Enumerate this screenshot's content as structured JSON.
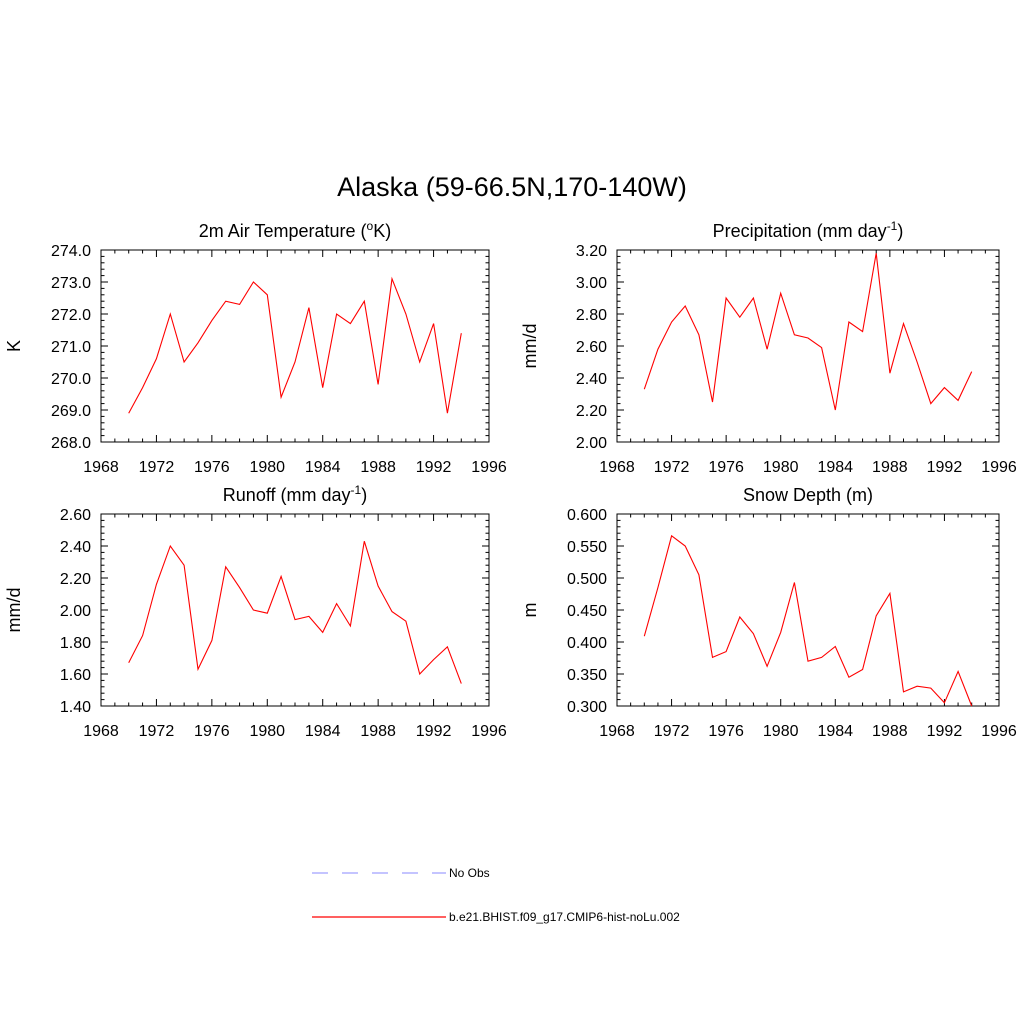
{
  "figure": {
    "title": "Alaska (59-66.5N,170-140W)"
  },
  "chart_data": [
    {
      "type": "line",
      "title": "2m Air Temperature (",
      "title_sup": "o",
      "title_end": "K)",
      "ylabel": "K",
      "xlim": [
        1968,
        1996
      ],
      "ylim": [
        268.0,
        274.0
      ],
      "xticks": [
        "1968",
        "1972",
        "1976",
        "1980",
        "1984",
        "1988",
        "1992",
        "1996"
      ],
      "yticks": [
        "268.0",
        "269.0",
        "270.0",
        "271.0",
        "272.0",
        "273.0",
        "274.0"
      ],
      "grid": false,
      "series": [
        {
          "name": "b.e21.BHIST.f09_g17.CMIP6-hist-noLu.002",
          "color": "#ff0000",
          "x": [
            1970,
            1971,
            1972,
            1973,
            1974,
            1975,
            1976,
            1977,
            1978,
            1979,
            1980,
            1981,
            1982,
            1983,
            1984,
            1985,
            1986,
            1987,
            1988,
            1989,
            1990,
            1991,
            1992,
            1993,
            1994
          ],
          "y": [
            268.9,
            269.7,
            270.6,
            272.0,
            270.5,
            271.1,
            271.8,
            272.4,
            272.3,
            273.0,
            272.6,
            269.4,
            270.5,
            272.2,
            269.7,
            272.0,
            271.7,
            272.4,
            269.8,
            273.1,
            272.0,
            270.5,
            271.7,
            268.9,
            271.4
          ]
        }
      ]
    },
    {
      "type": "line",
      "title": "Precipitation (mm day",
      "title_sup": "-1",
      "title_end": ")",
      "ylabel": "mm/d",
      "xlim": [
        1968,
        1996
      ],
      "ylim": [
        2.0,
        3.2
      ],
      "xticks": [
        "1968",
        "1972",
        "1976",
        "1980",
        "1984",
        "1988",
        "1992",
        "1996"
      ],
      "yticks": [
        "2.00",
        "2.20",
        "2.40",
        "2.60",
        "2.80",
        "3.00",
        "3.20"
      ],
      "grid": false,
      "series": [
        {
          "name": "b.e21.BHIST.f09_g17.CMIP6-hist-noLu.002",
          "color": "#ff0000",
          "x": [
            1970,
            1971,
            1972,
            1973,
            1974,
            1975,
            1976,
            1977,
            1978,
            1979,
            1980,
            1981,
            1982,
            1983,
            1984,
            1985,
            1986,
            1987,
            1988,
            1989,
            1990,
            1991,
            1992,
            1993,
            1994
          ],
          "y": [
            2.33,
            2.58,
            2.75,
            2.85,
            2.67,
            2.25,
            2.9,
            2.78,
            2.9,
            2.58,
            2.93,
            2.67,
            2.65,
            2.59,
            2.2,
            2.75,
            2.69,
            3.18,
            2.43,
            2.74,
            2.5,
            2.24,
            2.34,
            2.26,
            2.44
          ]
        }
      ]
    },
    {
      "type": "line",
      "title": "Runoff (mm day",
      "title_sup": "-1",
      "title_end": ")",
      "ylabel": "mm/d",
      "xlim": [
        1968,
        1996
      ],
      "ylim": [
        1.4,
        2.6
      ],
      "xticks": [
        "1968",
        "1972",
        "1976",
        "1980",
        "1984",
        "1988",
        "1992",
        "1996"
      ],
      "yticks": [
        "1.40",
        "1.60",
        "1.80",
        "2.00",
        "2.20",
        "2.40",
        "2.60"
      ],
      "grid": false,
      "series": [
        {
          "name": "b.e21.BHIST.f09_g17.CMIP6-hist-noLu.002",
          "color": "#ff0000",
          "x": [
            1970,
            1971,
            1972,
            1973,
            1974,
            1975,
            1976,
            1977,
            1978,
            1979,
            1980,
            1981,
            1982,
            1983,
            1984,
            1985,
            1986,
            1987,
            1988,
            1989,
            1990,
            1991,
            1992,
            1993,
            1994
          ],
          "y": [
            1.67,
            1.84,
            2.16,
            2.4,
            2.28,
            1.63,
            1.81,
            2.27,
            2.14,
            2.0,
            1.98,
            2.21,
            1.94,
            1.96,
            1.86,
            2.04,
            1.9,
            2.43,
            2.15,
            1.99,
            1.93,
            1.6,
            1.69,
            1.77,
            1.54
          ]
        }
      ]
    },
    {
      "type": "line",
      "title": "Snow Depth (m)",
      "title_sup": "",
      "title_end": "",
      "ylabel": "m",
      "xlim": [
        1968,
        1996
      ],
      "ylim": [
        0.3,
        0.6
      ],
      "xticks": [
        "1968",
        "1972",
        "1976",
        "1980",
        "1984",
        "1988",
        "1992",
        "1996"
      ],
      "yticks": [
        "0.300",
        "0.350",
        "0.400",
        "0.450",
        "0.500",
        "0.550",
        "0.600"
      ],
      "grid": false,
      "series": [
        {
          "name": "b.e21.BHIST.f09_g17.CMIP6-hist-noLu.002",
          "color": "#ff0000",
          "x": [
            1970,
            1971,
            1972,
            1973,
            1974,
            1975,
            1976,
            1977,
            1978,
            1979,
            1980,
            1981,
            1982,
            1983,
            1984,
            1985,
            1986,
            1987,
            1988,
            1989,
            1990,
            1991,
            1992,
            1993,
            1994
          ],
          "y": [
            0.409,
            0.485,
            0.566,
            0.55,
            0.505,
            0.376,
            0.385,
            0.439,
            0.413,
            0.362,
            0.415,
            0.493,
            0.37,
            0.376,
            0.393,
            0.345,
            0.357,
            0.441,
            0.476,
            0.322,
            0.331,
            0.328,
            0.305,
            0.354,
            0.3
          ]
        }
      ]
    }
  ],
  "legend": {
    "items": [
      {
        "label": "No Obs",
        "color": "#a0a0ff",
        "dash": true
      },
      {
        "label": "b.e21.BHIST.f09_g17.CMIP6-hist-noLu.002",
        "color": "#ff0000",
        "dash": false
      }
    ]
  }
}
